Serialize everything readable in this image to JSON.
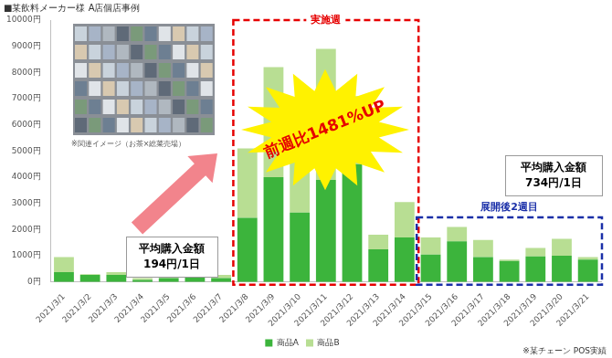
{
  "chart_data": {
    "type": "bar",
    "title": "■某飲料メーカー様 A店個店事例",
    "categories": [
      "2021/3/1",
      "2021/3/2",
      "2021/3/3",
      "2021/3/4",
      "2021/3/5",
      "2021/3/6",
      "2021/3/7",
      "2021/3/8",
      "2021/3/9",
      "2021/3/10",
      "2021/3/11",
      "2021/3/12",
      "2021/3/13",
      "2021/3/14",
      "2021/3/15",
      "2021/3/16",
      "2021/3/17",
      "2021/3/18",
      "2021/3/19",
      "2021/3/20",
      "2021/3/21"
    ],
    "series": [
      {
        "name": "商品A",
        "color": "#3cb43c",
        "values": [
          370,
          270,
          270,
          80,
          150,
          370,
          150,
          2450,
          4000,
          2650,
          3900,
          4500,
          1250,
          1700,
          1050,
          1550,
          950,
          800,
          980,
          1000,
          850
        ]
      },
      {
        "name": "商品B",
        "color": "#b8de93",
        "values": [
          580,
          30,
          100,
          70,
          50,
          100,
          120,
          2650,
          4200,
          2350,
          5000,
          2600,
          550,
          1350,
          650,
          550,
          650,
          50,
          320,
          650,
          100
        ]
      }
    ],
    "stacked": true,
    "ylim": [
      0,
      10000
    ],
    "yticks": [
      {
        "value": 0,
        "label": "0円"
      },
      {
        "value": 1000,
        "label": "1000円"
      },
      {
        "value": 2000,
        "label": "2000円"
      },
      {
        "value": 3000,
        "label": "3000円"
      },
      {
        "value": 4000,
        "label": "4000円"
      },
      {
        "value": 5000,
        "label": "5000円"
      },
      {
        "value": 6000,
        "label": "6000円"
      },
      {
        "value": 7000,
        "label": "7000円"
      },
      {
        "value": 8000,
        "label": "8000円"
      },
      {
        "value": 9000,
        "label": "9000円"
      },
      {
        "value": 10000,
        "label": "10000円"
      }
    ],
    "grid": false,
    "legend": "bottom",
    "highlights": [
      {
        "label": "実施週",
        "range": [
          "2021/3/8",
          "2021/3/14"
        ]
      },
      {
        "label": "展開後2週目",
        "range": [
          "2021/3/15",
          "2021/3/21"
        ]
      }
    ],
    "callout": "前週比1481%UP",
    "notes": [
      [
        "平均購入金額",
        "194円/1日"
      ],
      [
        "平均購入金額",
        "734円/1日"
      ]
    ],
    "image_caption": "※関連イメージ（お茶×総菜売場）",
    "source": "※某チェーン POS実績"
  }
}
